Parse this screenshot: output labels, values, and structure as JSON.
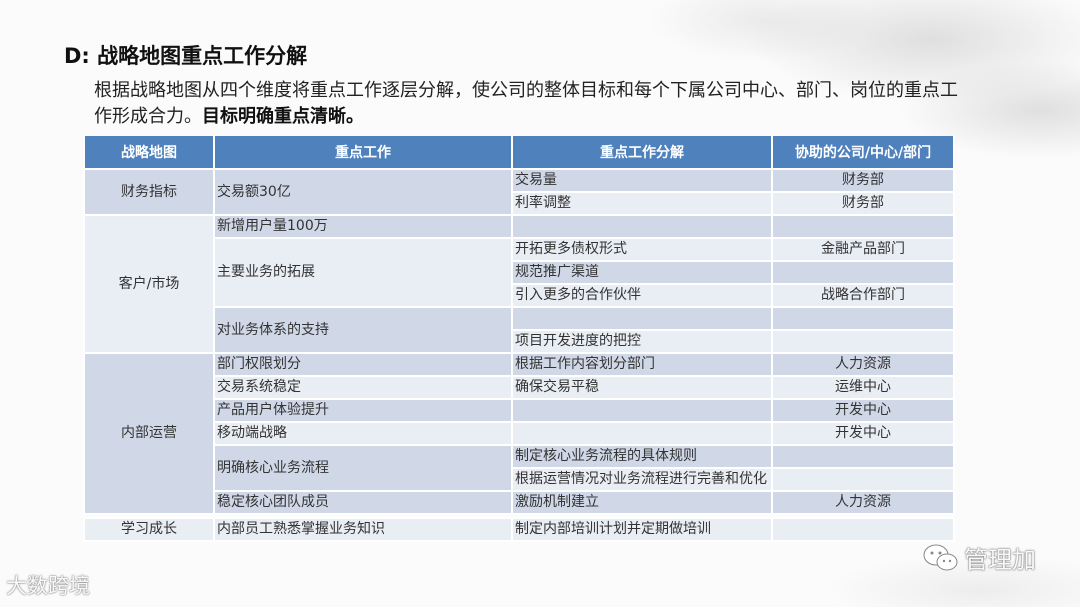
{
  "slide": {
    "title": "D: 战略地图重点工作分解",
    "intro_text": "根据战略地图从四个维度将重点工作逐层分解，使公司的整体目标和每个下属公司中心、部门、岗位的重点工作形成合力。",
    "intro_bold": "目标明确重点清晰。"
  },
  "table": {
    "headers": [
      "战略地图",
      "重点工作",
      "重点工作分解",
      "协助的公司/中心/部门"
    ],
    "colors": {
      "header": "#4f81bd",
      "dark_row": "#d0d8e8",
      "light_row": "#e9edf4"
    },
    "groups": [
      {
        "dimension": "财务指标",
        "tasks": [
          {
            "task": "交易额30亿",
            "items": [
              {
                "breakdown": "交易量",
                "dept": "财务部"
              },
              {
                "breakdown": "利率调整",
                "dept": "财务部"
              }
            ]
          }
        ]
      },
      {
        "dimension": "客户/市场",
        "tasks": [
          {
            "task": "新增用户量100万",
            "items": [
              {
                "breakdown": "",
                "dept": ""
              }
            ]
          },
          {
            "task": "主要业务的拓展",
            "items": [
              {
                "breakdown": "开拓更多债权形式",
                "dept": "金融产品部门"
              },
              {
                "breakdown": "规范推广渠道",
                "dept": ""
              },
              {
                "breakdown": "引入更多的合作伙伴",
                "dept": "战略合作部门"
              }
            ]
          },
          {
            "task": "对业务体系的支持",
            "items": [
              {
                "breakdown": "",
                "dept": ""
              },
              {
                "breakdown": "项目开发进度的把控",
                "dept": ""
              }
            ]
          }
        ]
      },
      {
        "dimension": "内部运营",
        "tasks": [
          {
            "task": "部门权限划分",
            "items": [
              {
                "breakdown": "根据工作内容划分部门",
                "dept": "人力资源"
              }
            ]
          },
          {
            "task": "交易系统稳定",
            "items": [
              {
                "breakdown": "确保交易平稳",
                "dept": "运维中心"
              }
            ]
          },
          {
            "task": "产品用户体验提升",
            "items": [
              {
                "breakdown": "",
                "dept": "开发中心"
              }
            ]
          },
          {
            "task": "移动端战略",
            "items": [
              {
                "breakdown": "",
                "dept": "开发中心"
              }
            ]
          },
          {
            "task": "明确核心业务流程",
            "items": [
              {
                "breakdown": "制定核心业务流程的具体规则",
                "dept": ""
              },
              {
                "breakdown": "根据运营情况对业务流程进行完善和优化",
                "dept": ""
              }
            ]
          },
          {
            "task": "稳定核心团队成员",
            "items": [
              {
                "breakdown": "激励机制建立",
                "dept": "人力资源"
              }
            ]
          }
        ]
      },
      {
        "dimension": "学习成长",
        "tasks": [
          {
            "task": "内部员工熟悉掌握业务知识",
            "items": [
              {
                "breakdown": "制定内部培训计划并定期做培训",
                "dept": ""
              }
            ]
          }
        ]
      }
    ]
  },
  "watermarks": {
    "left": "大数跨境",
    "right": "管理加",
    "right_icon": "wechat-icon"
  }
}
